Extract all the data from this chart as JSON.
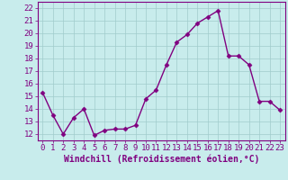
{
  "x": [
    0,
    1,
    2,
    3,
    4,
    5,
    6,
    7,
    8,
    9,
    10,
    11,
    12,
    13,
    14,
    15,
    16,
    17,
    18,
    19,
    20,
    21,
    22,
    23
  ],
  "y": [
    15.3,
    13.5,
    12.0,
    13.3,
    14.0,
    11.9,
    12.3,
    12.4,
    12.4,
    12.7,
    14.8,
    15.5,
    17.5,
    19.3,
    19.9,
    20.8,
    21.3,
    21.8,
    18.2,
    18.2,
    17.5,
    14.6,
    14.6,
    13.9
  ],
  "line_color": "#800080",
  "marker": "D",
  "marker_size": 2.5,
  "linewidth": 1.0,
  "xlabel": "Windchill (Refroidissement éolien,°C)",
  "xlabel_fontsize": 7,
  "xtick_labels": [
    "0",
    "1",
    "2",
    "3",
    "4",
    "5",
    "6",
    "7",
    "8",
    "9",
    "10",
    "11",
    "12",
    "13",
    "14",
    "15",
    "16",
    "17",
    "18",
    "19",
    "20",
    "21",
    "22",
    "23"
  ],
  "ylim": [
    11.5,
    22.5
  ],
  "ytick_values": [
    12,
    13,
    14,
    15,
    16,
    17,
    18,
    19,
    20,
    21,
    22
  ],
  "background_color": "#c8ecec",
  "grid_color": "#a0cccc",
  "tick_fontsize": 6.5,
  "spine_color": "#800080"
}
